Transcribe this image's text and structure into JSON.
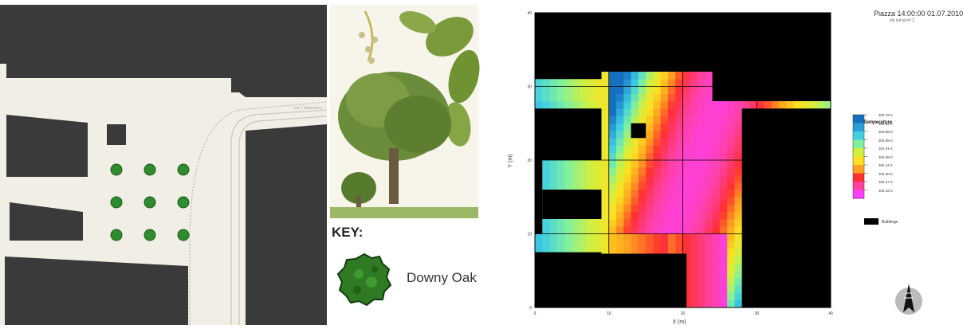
{
  "site_plan": {
    "street_label": "Via 1 Settembre",
    "trees": [
      {
        "row": 1,
        "col": 1
      },
      {
        "row": 1,
        "col": 2
      },
      {
        "row": 1,
        "col": 3
      },
      {
        "row": 2,
        "col": 1
      },
      {
        "row": 2,
        "col": 2
      },
      {
        "row": 2,
        "col": 3
      },
      {
        "row": 3,
        "col": 1
      },
      {
        "row": 3,
        "col": 2
      },
      {
        "row": 3,
        "col": 3
      }
    ],
    "colors": {
      "ground": "#f1efe5",
      "building": "#3a3a3a",
      "tree": "#2e8b2e",
      "tree_outline": "#1e5e1e"
    }
  },
  "key": {
    "title": "KEY:",
    "item_label": "Downy Oak",
    "icon": "oak-tree-icon"
  },
  "simulation": {
    "title": "Piazza 14:00:00 01.07.2010",
    "subtitle": "x/y cut at z= 2",
    "legend_title": "Pot. Temperature",
    "legend_ticks": [
      "303.76 K",
      "303.82 K",
      "303.88 K",
      "303.95 K",
      "304.01 K",
      "304.08 K",
      "304.14 K",
      "304.20 K",
      "304.27 K",
      "304.33 K"
    ],
    "legend_colors": [
      "#1570c0",
      "#2aa0d8",
      "#40d0e0",
      "#80f0a0",
      "#d0f040",
      "#ffe020",
      "#ffa020",
      "#ff3030",
      "#ff40a0",
      "#ff40ff"
    ],
    "buildings_label": "Buildings",
    "north_icon": "north-arrow-icon"
  },
  "chart_data": {
    "type": "heatmap",
    "title": "Piazza 14:00:00 01.07.2010",
    "subtitle": "x/y cut at z= 2",
    "xlabel": "X (m)",
    "ylabel": "Y (m)",
    "xlim": [
      0,
      40
    ],
    "ylim": [
      0,
      40
    ],
    "x_ticks": [
      0,
      10,
      20,
      30,
      40
    ],
    "y_ticks": [
      0,
      10,
      20,
      30,
      40
    ],
    "grid": true,
    "colorbar_label": "Pot. Temperature",
    "colorbar_range": [
      303.76,
      304.33
    ],
    "buildings": [
      {
        "x0": 0,
        "x1": 9,
        "y0": 0,
        "y1": 7
      },
      {
        "x0": 20,
        "x1": 20.5,
        "y0": 0,
        "y1": 7
      },
      {
        "x0": 0,
        "x1": 9,
        "y0": 7,
        "y1": 7.5
      },
      {
        "x0": 0,
        "x1": 20.5,
        "y0": 0,
        "y1": 7.3
      },
      {
        "x0": 28,
        "x1": 40,
        "y0": 0,
        "y1": 27
      },
      {
        "x0": 0,
        "x1": 9,
        "y0": 20,
        "y1": 27
      },
      {
        "x0": 0,
        "x1": 1,
        "y0": 10,
        "y1": 20
      },
      {
        "x0": 1,
        "x1": 9,
        "y0": 12,
        "y1": 16
      },
      {
        "x0": 0,
        "x1": 40,
        "y0": 32,
        "y1": 40
      },
      {
        "x0": 0,
        "x1": 9,
        "y0": 31,
        "y1": 32
      },
      {
        "x0": 24,
        "x1": 40,
        "y0": 28,
        "y1": 32
      },
      {
        "x0": 13,
        "x1": 15,
        "y0": 23,
        "y1": 25
      },
      {
        "x0": 0,
        "x1": 20,
        "y0": 0,
        "y1": 7
      }
    ]
  }
}
